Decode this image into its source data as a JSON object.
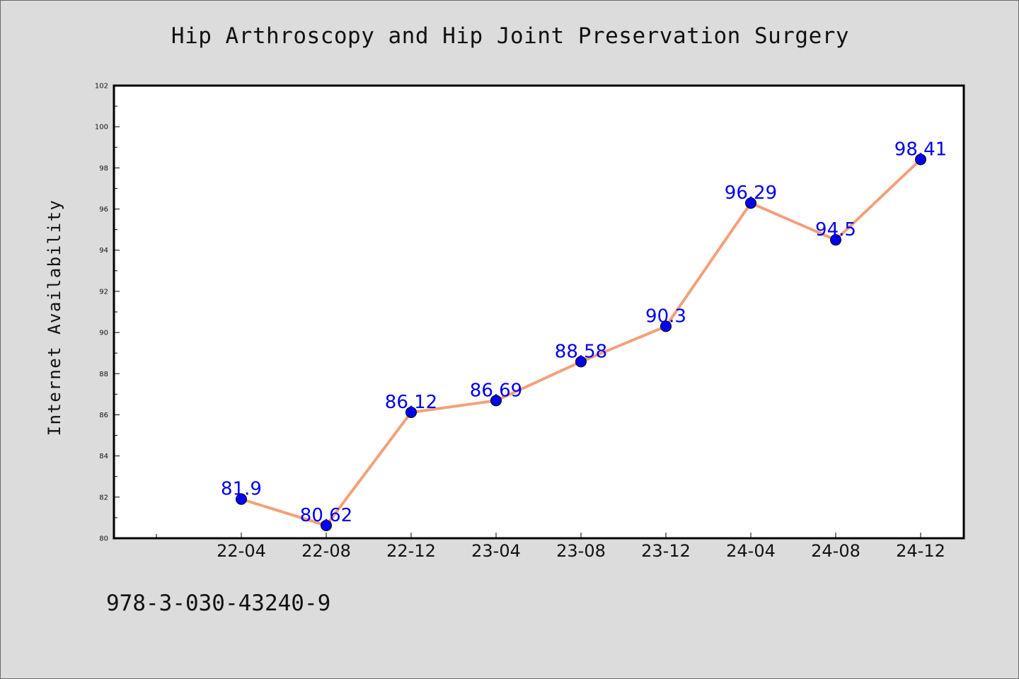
{
  "chart_data": {
    "type": "line",
    "title": "Hip Arthroscopy and Hip Joint Preservation Surgery",
    "xlabel": "",
    "ylabel": "Internet Availability",
    "categories": [
      "22-04",
      "22-08",
      "22-12",
      "23-04",
      "23-08",
      "23-12",
      "24-04",
      "24-08",
      "24-12"
    ],
    "series": [
      {
        "values": [
          81.9,
          80.62,
          86.12,
          86.69,
          88.58,
          90.3,
          96.29,
          94.5,
          98.41
        ]
      }
    ],
    "data_labels": [
      "81.9",
      "80.62",
      "86.12",
      "86.69",
      "88.58",
      "90.3",
      "96.29",
      "94.5",
      "98.41"
    ],
    "ylim": [
      80,
      102
    ],
    "yticks": [
      80,
      82,
      84,
      86,
      88,
      90,
      92,
      94,
      96,
      98,
      100,
      102
    ],
    "grid": false,
    "legend": "none",
    "colors": {
      "line": "#f4a07a",
      "marker": "#0000ee",
      "label": "#0000ee",
      "background": "#dcdcdc",
      "plot_area": "#ffffff"
    }
  },
  "footnote": "978-3-030-43240-9"
}
